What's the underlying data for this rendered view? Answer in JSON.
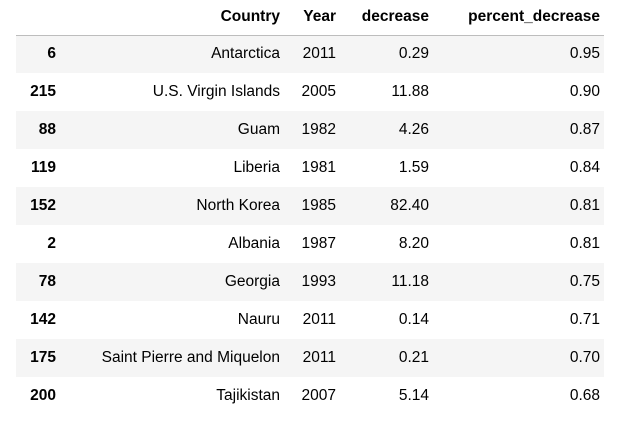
{
  "table": {
    "columns": [
      "",
      "Country",
      "Year",
      "decrease",
      "percent_decrease"
    ],
    "rows": [
      {
        "index": "6",
        "country": "Antarctica",
        "year": "2011",
        "decrease": "0.29",
        "percent_decrease": "0.95"
      },
      {
        "index": "215",
        "country": "U.S. Virgin Islands",
        "year": "2005",
        "decrease": "11.88",
        "percent_decrease": "0.90"
      },
      {
        "index": "88",
        "country": "Guam",
        "year": "1982",
        "decrease": "4.26",
        "percent_decrease": "0.87"
      },
      {
        "index": "119",
        "country": "Liberia",
        "year": "1981",
        "decrease": "1.59",
        "percent_decrease": "0.84"
      },
      {
        "index": "152",
        "country": "North Korea",
        "year": "1985",
        "decrease": "82.40",
        "percent_decrease": "0.81"
      },
      {
        "index": "2",
        "country": "Albania",
        "year": "1987",
        "decrease": "8.20",
        "percent_decrease": "0.81"
      },
      {
        "index": "78",
        "country": "Georgia",
        "year": "1993",
        "decrease": "11.18",
        "percent_decrease": "0.75"
      },
      {
        "index": "142",
        "country": "Nauru",
        "year": "2011",
        "decrease": "0.14",
        "percent_decrease": "0.71"
      },
      {
        "index": "175",
        "country": "Saint Pierre and Miquelon",
        "year": "2011",
        "decrease": "0.21",
        "percent_decrease": "0.70"
      },
      {
        "index": "200",
        "country": "Tajikistan",
        "year": "2007",
        "decrease": "5.14",
        "percent_decrease": "0.68"
      }
    ]
  }
}
